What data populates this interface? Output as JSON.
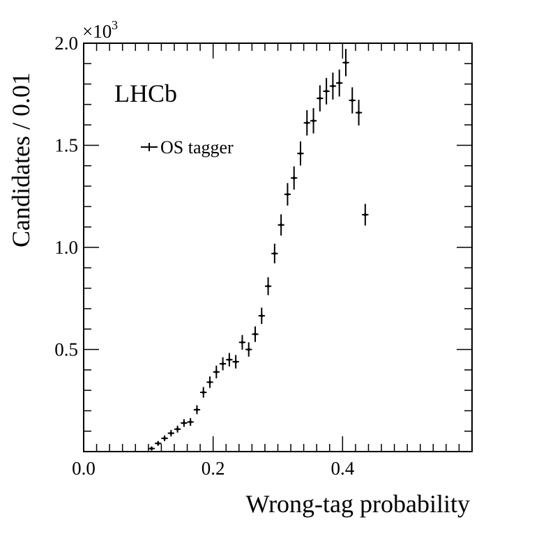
{
  "chart_data": {
    "type": "scatter",
    "title": "",
    "watermark": "LHCb",
    "xlabel": "Wrong-tag probability",
    "ylabel": "Candidates / 0.01",
    "y_multiplier_label": "×10",
    "y_multiplier_exponent": "3",
    "xlim": [
      0.0,
      0.6
    ],
    "ylim": [
      0.0,
      2.0
    ],
    "x_ticks": [
      0.0,
      0.2,
      0.4
    ],
    "x_tick_labels": [
      "0.0",
      "0.2",
      "0.4"
    ],
    "y_ticks": [
      0.5,
      1.0,
      1.5,
      2.0
    ],
    "y_tick_labels": [
      "0.5",
      "1.0",
      "1.5",
      "2.0"
    ],
    "grid": false,
    "legend_position": "top-left",
    "series": [
      {
        "name": "OS tagger",
        "color": "#000000",
        "x": [
          0.105,
          0.115,
          0.125,
          0.135,
          0.145,
          0.155,
          0.165,
          0.175,
          0.185,
          0.195,
          0.205,
          0.215,
          0.225,
          0.235,
          0.245,
          0.255,
          0.265,
          0.275,
          0.285,
          0.295,
          0.305,
          0.315,
          0.325,
          0.335,
          0.345,
          0.355,
          0.365,
          0.375,
          0.385,
          0.395,
          0.405,
          0.415,
          0.425,
          0.435,
          0.445,
          0.455,
          0.465,
          0.475
        ],
        "y": [
          0.015,
          0.04,
          0.065,
          0.09,
          0.11,
          0.14,
          0.145,
          0.205,
          0.29,
          0.34,
          0.39,
          0.43,
          0.45,
          0.44,
          0.535,
          0.5,
          0.575,
          0.665,
          0.81,
          0.97,
          1.11,
          1.26,
          1.34,
          1.46,
          1.61,
          1.62,
          1.73,
          1.765,
          1.79,
          1.805,
          1.905,
          1.72,
          1.66,
          1.16,
          0,
          0,
          0,
          0
        ],
        "yerr": [
          0.01,
          0.012,
          0.014,
          0.016,
          0.017,
          0.019,
          0.019,
          0.022,
          0.026,
          0.028,
          0.031,
          0.032,
          0.033,
          0.033,
          0.036,
          0.035,
          0.038,
          0.04,
          0.044,
          0.048,
          0.052,
          0.055,
          0.057,
          0.059,
          0.062,
          0.062,
          0.064,
          0.065,
          0.066,
          0.066,
          0.067,
          0.064,
          0.063,
          0.053,
          0,
          0,
          0,
          0
        ],
        "n_points": 34
      }
    ]
  }
}
